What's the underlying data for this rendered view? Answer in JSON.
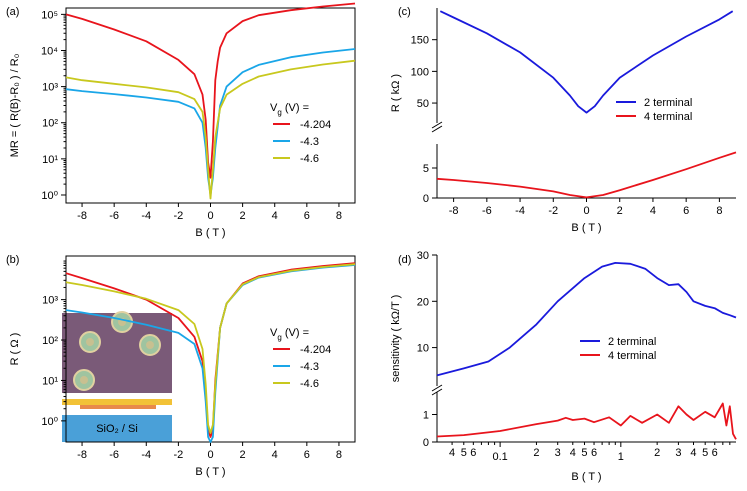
{
  "chart_data": [
    {
      "id": "a",
      "panel_label": "(a)",
      "type": "line",
      "y_scale": "log",
      "xlabel": "B ( T )",
      "ylabel": "MR = ( R(B)-R₀ ) / R₀",
      "xlim": [
        -9,
        9
      ],
      "ylim": [
        0.6,
        150000
      ],
      "x_ticks": [
        "-8",
        "-6",
        "-4",
        "-2",
        "0",
        "2",
        "4",
        "6",
        "8"
      ],
      "y_ticks": [
        "10⁰",
        "10¹",
        "10²",
        "10³",
        "10⁴",
        "10⁵"
      ],
      "legend_title": "V_g (V) =",
      "legend_title_parts": [
        "V",
        "g",
        " (V) ="
      ],
      "series": [
        {
          "name": "-4.204",
          "color": "#e8141c",
          "x": [
            -9,
            -8,
            -6,
            -4,
            -2,
            -1,
            -0.5,
            -0.3,
            -0.15,
            0,
            0.15,
            0.3,
            0.45,
            0.6,
            1,
            2,
            3,
            5,
            7,
            9
          ],
          "y": [
            100000,
            75000,
            38000,
            18000,
            5500,
            2200,
            600,
            120,
            8,
            3,
            30,
            1500,
            5000,
            12000,
            30000,
            65000,
            95000,
            130000,
            165000,
            200000
          ]
        },
        {
          "name": "-4.3",
          "color": "#1aa6e8",
          "x": [
            -9,
            -8,
            -6,
            -4,
            -2,
            -1,
            -0.5,
            -0.3,
            -0.15,
            0,
            0.15,
            0.3,
            0.6,
            1,
            2,
            3,
            5,
            7,
            9
          ],
          "y": [
            850,
            750,
            620,
            500,
            380,
            250,
            100,
            20,
            3,
            1,
            3,
            20,
            300,
            1000,
            2500,
            4000,
            6500,
            8800,
            11000
          ]
        },
        {
          "name": "-4.6",
          "color": "#c8c81e",
          "x": [
            -9,
            -8,
            -6,
            -4,
            -2,
            -1,
            -0.5,
            -0.3,
            -0.15,
            0,
            0.15,
            0.3,
            0.6,
            1,
            2,
            3,
            5,
            7,
            9
          ],
          "y": [
            1800,
            1500,
            1200,
            950,
            700,
            450,
            200,
            40,
            5,
            0.8,
            5,
            40,
            250,
            600,
            1200,
            1900,
            3000,
            4100,
            5200
          ]
        }
      ]
    },
    {
      "id": "b",
      "panel_label": "(b)",
      "type": "line",
      "y_scale": "log",
      "xlabel": "B ( T )",
      "ylabel": "R ( Ω )",
      "xlim": [
        -9,
        9
      ],
      "ylim": [
        0.3,
        12000
      ],
      "x_ticks": [
        "-8",
        "-6",
        "-4",
        "-2",
        "0",
        "2",
        "4",
        "6",
        "8"
      ],
      "y_ticks": [
        "10⁰",
        "10¹",
        "10²",
        "10³"
      ],
      "legend_title": "V_g (V) =",
      "legend_title_parts": [
        "V",
        "g",
        " (V) ="
      ],
      "inset_label": "SiO₂ / Si",
      "series": [
        {
          "name": "-4.204",
          "color": "#e8141c",
          "x": [
            -9,
            -8,
            -6,
            -4,
            -2,
            -1,
            -0.5,
            -0.3,
            -0.15,
            0,
            0.15,
            0.3,
            0.6,
            1,
            2,
            3,
            5,
            7,
            9
          ],
          "y": [
            4500,
            3400,
            1900,
            1000,
            350,
            120,
            30,
            5,
            0.6,
            0.4,
            0.6,
            10,
            200,
            800,
            2500,
            3800,
            5500,
            6800,
            8000
          ]
        },
        {
          "name": "-4.3",
          "color": "#1aa6e8",
          "x": [
            -9,
            -8,
            -6,
            -4,
            -2,
            -1,
            -0.5,
            -0.3,
            -0.15,
            0,
            0.15,
            0.3,
            0.6,
            1,
            2,
            3,
            5,
            7,
            9
          ],
          "y": [
            550,
            480,
            350,
            240,
            150,
            80,
            20,
            3,
            0.4,
            0.3,
            0.4,
            5,
            200,
            800,
            2300,
            3500,
            5000,
            6200,
            7200
          ]
        },
        {
          "name": "-4.6",
          "color": "#c8c81e",
          "x": [
            -9,
            -8,
            -6,
            -4,
            -2,
            -1,
            -0.5,
            -0.3,
            -0.15,
            0,
            0.15,
            0.3,
            0.6,
            1,
            2,
            3,
            5,
            7,
            9
          ],
          "y": [
            2700,
            2300,
            1600,
            1050,
            550,
            250,
            60,
            8,
            0.8,
            0.5,
            0.8,
            8,
            200,
            800,
            2400,
            3600,
            5200,
            6400,
            7500
          ]
        }
      ]
    },
    {
      "id": "c",
      "panel_label": "(c)",
      "type": "line",
      "y_scale": "broken",
      "xlabel": "B ( T )",
      "ylabel": "R ( kΩ )",
      "xlim": [
        -9,
        9
      ],
      "ylim_upper": [
        28,
        200
      ],
      "ylim_lower": [
        0,
        8
      ],
      "x_ticks": [
        "-8",
        "-6",
        "-4",
        "-2",
        "0",
        "2",
        "4",
        "6",
        "8"
      ],
      "y_ticks_upper": [
        "50",
        "100",
        "150"
      ],
      "y_ticks_lower": [
        "0",
        "5"
      ],
      "series": [
        {
          "name": "2 terminal",
          "color": "#1a1adc",
          "axis": "upper",
          "x": [
            -8.8,
            -8,
            -6,
            -4,
            -2,
            -1,
            -0.5,
            0,
            0.5,
            1,
            2,
            4,
            6,
            8,
            8.8
          ],
          "y": [
            195,
            185,
            160,
            130,
            90,
            62,
            45,
            35,
            45,
            62,
            90,
            125,
            155,
            182,
            195
          ]
        },
        {
          "name": "4 terminal",
          "color": "#e8141c",
          "axis": "lower",
          "x": [
            -9,
            -8,
            -6,
            -4,
            -2,
            -1,
            0,
            1,
            2,
            4,
            6,
            8,
            9
          ],
          "y": [
            3.2,
            3.0,
            2.5,
            1.9,
            1.1,
            0.5,
            0.1,
            0.5,
            1.3,
            3.0,
            4.8,
            6.7,
            7.6
          ]
        }
      ]
    },
    {
      "id": "d",
      "panel_label": "(d)",
      "type": "line",
      "x_scale": "log",
      "y_scale": "broken",
      "xlabel": "B ( T )",
      "ylabel": "sensitivity ( kΩ/T )",
      "xlim": [
        0.03,
        9
      ],
      "ylim_upper": [
        3,
        30
      ],
      "ylim_lower": [
        0,
        1.6
      ],
      "x_ticks_major": [
        "0.1",
        "1"
      ],
      "x_ticks_minor": [
        "4",
        "5",
        "6",
        "2",
        "3",
        "4",
        "5",
        "6",
        "2",
        "3",
        "4",
        "5",
        "6"
      ],
      "y_ticks_upper": [
        "10",
        "20",
        "30"
      ],
      "y_ticks_lower": [
        "0",
        "1"
      ],
      "series": [
        {
          "name": "2 terminal",
          "color": "#1a1adc",
          "axis": "upper",
          "x": [
            0.03,
            0.05,
            0.08,
            0.12,
            0.2,
            0.3,
            0.5,
            0.7,
            0.9,
            1.2,
            1.6,
            2,
            2.5,
            3,
            3.5,
            4,
            5,
            6,
            7,
            8,
            9
          ],
          "y": [
            4,
            5.5,
            7,
            10,
            15,
            20,
            25,
            27.5,
            28.3,
            28.1,
            27,
            25,
            23.5,
            23.7,
            22,
            20,
            19,
            18.5,
            17.5,
            17,
            16.5
          ]
        },
        {
          "name": "4 terminal",
          "color": "#e8141c",
          "axis": "lower",
          "x": [
            0.03,
            0.05,
            0.1,
            0.2,
            0.3,
            0.35,
            0.4,
            0.5,
            0.6,
            0.8,
            1,
            1.2,
            1.5,
            2,
            2.5,
            3,
            3.5,
            4,
            5,
            6,
            7,
            7.5,
            8,
            8.5,
            9
          ],
          "y": [
            0.2,
            0.25,
            0.4,
            0.65,
            0.78,
            0.88,
            0.8,
            0.85,
            0.72,
            0.9,
            0.6,
            0.95,
            0.7,
            1.0,
            0.7,
            1.3,
            1.0,
            0.8,
            1.1,
            0.9,
            1.4,
            0.6,
            1.3,
            0.3,
            0.1
          ]
        }
      ]
    }
  ]
}
